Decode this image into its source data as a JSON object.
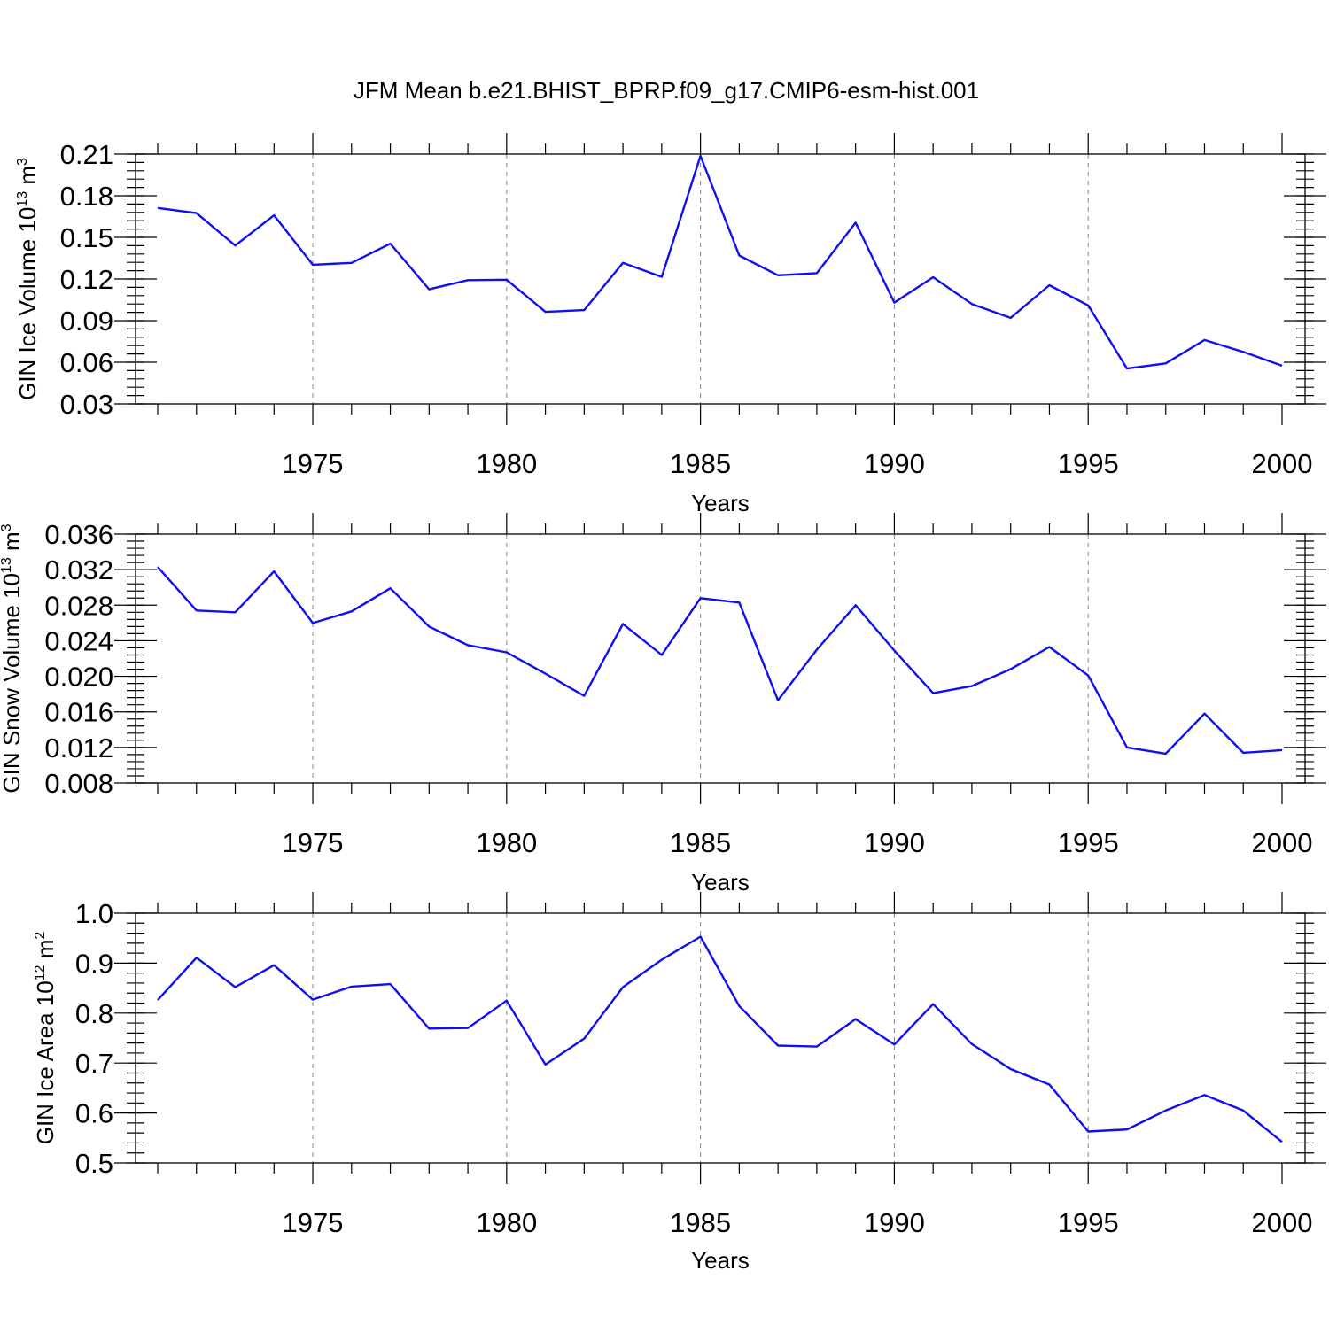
{
  "figure_title": "JFM Mean b.e21.BHIST_BPRP.f09_g17.CMIP6-esm-hist.001",
  "chart_data": [
    {
      "type": "line",
      "ylabel_main": "GIN Ice Volume 10",
      "ylabel_exp": "13",
      "ylabel_unit": " m",
      "ylabel_unit_exp": "3",
      "xlabel": "Years",
      "xlim": [
        1971,
        2000
      ],
      "ylim": [
        0.03,
        0.21
      ],
      "yticks": [
        0.03,
        0.06,
        0.09,
        0.12,
        0.15,
        0.18,
        0.21
      ],
      "ytick_labels": [
        "0.03",
        "0.06",
        "0.09",
        "0.12",
        "0.15",
        "0.18",
        "0.21"
      ],
      "y_minor_step": 0.006,
      "xticks": [
        1975,
        1980,
        1985,
        1990,
        1995,
        2000
      ],
      "xtick_labels": [
        "1975",
        "1980",
        "1985",
        "1990",
        "1995",
        "2000"
      ],
      "grid": true,
      "line_color": "#1010ee",
      "x": [
        1971,
        1972,
        1973,
        1974,
        1975,
        1976,
        1977,
        1978,
        1979,
        1980,
        1981,
        1982,
        1983,
        1984,
        1985,
        1986,
        1987,
        1988,
        1989,
        1990,
        1991,
        1992,
        1993,
        1994,
        1995,
        1996,
        1997,
        1998,
        1999,
        2000
      ],
      "values": [
        0.1712,
        0.1675,
        0.1441,
        0.1659,
        0.1303,
        0.1316,
        0.1455,
        0.1126,
        0.1192,
        0.1195,
        0.0963,
        0.0976,
        0.1316,
        0.1215,
        0.2087,
        0.1369,
        0.1227,
        0.1242,
        0.1606,
        0.103,
        0.1213,
        0.102,
        0.092,
        0.1155,
        0.101,
        0.0555,
        0.0592,
        0.076,
        0.0675,
        0.0575
      ]
    },
    {
      "type": "line",
      "ylabel_main": "GIN Snow Volume 10",
      "ylabel_exp": "13",
      "ylabel_unit": " m",
      "ylabel_unit_exp": "3",
      "xlabel": "Years",
      "xlim": [
        1971,
        2000
      ],
      "ylim": [
        0.008,
        0.036
      ],
      "yticks": [
        0.008,
        0.012,
        0.016,
        0.02,
        0.024,
        0.028,
        0.032,
        0.036
      ],
      "ytick_labels": [
        "0.008",
        "0.012",
        "0.016",
        "0.020",
        "0.024",
        "0.028",
        "0.032",
        "0.036"
      ],
      "y_minor_step": 0.0008,
      "xticks": [
        1975,
        1980,
        1985,
        1990,
        1995,
        2000
      ],
      "xtick_labels": [
        "1975",
        "1980",
        "1985",
        "1990",
        "1995",
        "2000"
      ],
      "grid": true,
      "line_color": "#1010ee",
      "x": [
        1971,
        1972,
        1973,
        1974,
        1975,
        1976,
        1977,
        1978,
        1979,
        1980,
        1981,
        1982,
        1983,
        1984,
        1985,
        1986,
        1987,
        1988,
        1989,
        1990,
        1991,
        1992,
        1993,
        1994,
        1995,
        1996,
        1997,
        1998,
        1999,
        2000
      ],
      "values": [
        0.0323,
        0.0274,
        0.0272,
        0.0318,
        0.026,
        0.0273,
        0.0299,
        0.0256,
        0.0235,
        0.0227,
        0.0203,
        0.0178,
        0.0259,
        0.0224,
        0.0288,
        0.0283,
        0.0173,
        0.023,
        0.028,
        0.0229,
        0.0181,
        0.0189,
        0.0208,
        0.0233,
        0.0201,
        0.012,
        0.0113,
        0.0158,
        0.0114,
        0.0117
      ]
    },
    {
      "type": "line",
      "ylabel_main": "GIN Ice Area 10",
      "ylabel_exp": "12",
      "ylabel_unit": " m",
      "ylabel_unit_exp": "2",
      "xlabel": "Years",
      "xlim": [
        1971,
        2000
      ],
      "ylim": [
        0.5,
        1.0
      ],
      "yticks": [
        0.5,
        0.6,
        0.7,
        0.8,
        0.9,
        1.0
      ],
      "ytick_labels": [
        "0.5",
        "0.6",
        "0.7",
        "0.8",
        "0.9",
        "1.0"
      ],
      "y_minor_step": 0.02,
      "xticks": [
        1975,
        1980,
        1985,
        1990,
        1995,
        2000
      ],
      "xtick_labels": [
        "1975",
        "1980",
        "1985",
        "1990",
        "1995",
        "2000"
      ],
      "grid": true,
      "line_color": "#1010ee",
      "x": [
        1971,
        1972,
        1973,
        1974,
        1975,
        1976,
        1977,
        1978,
        1979,
        1980,
        1981,
        1982,
        1983,
        1984,
        1985,
        1986,
        1987,
        1988,
        1989,
        1990,
        1991,
        1992,
        1993,
        1994,
        1995,
        1996,
        1997,
        1998,
        1999,
        2000
      ],
      "values": [
        0.826,
        0.911,
        0.852,
        0.896,
        0.827,
        0.853,
        0.858,
        0.769,
        0.77,
        0.825,
        0.697,
        0.749,
        0.852,
        0.907,
        0.953,
        0.814,
        0.735,
        0.733,
        0.788,
        0.737,
        0.818,
        0.738,
        0.688,
        0.657,
        0.563,
        0.567,
        0.605,
        0.636,
        0.605,
        0.542
      ]
    }
  ]
}
